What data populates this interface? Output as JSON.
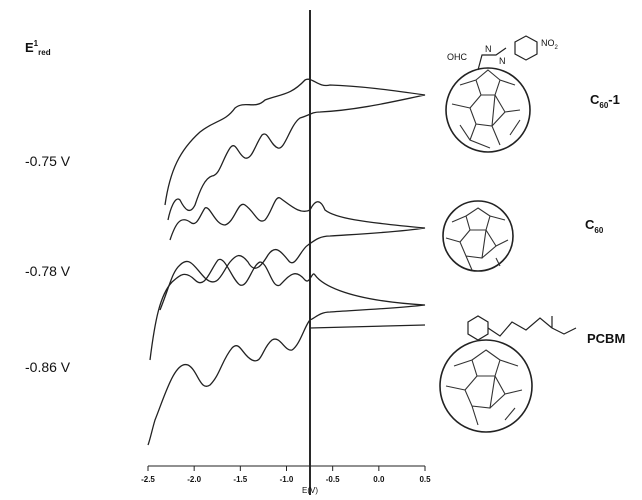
{
  "potential_label": {
    "main": "E",
    "sup": "1",
    "sub": "red"
  },
  "potentials": [
    "-0.75 V",
    "-0.78 V",
    "-0.86 V"
  ],
  "compounds": [
    {
      "name": "C",
      "sub": "60",
      "suffix": "-1"
    },
    {
      "name": "C",
      "sub": "60",
      "suffix": ""
    },
    {
      "name": "PCBM",
      "sub": "",
      "suffix": ""
    }
  ],
  "substituents": {
    "aldehyde": "OHC",
    "nitrogen": "N",
    "nitro": "NO",
    "nitro_sub": "2"
  },
  "x_axis": {
    "ticks": [
      "-2.5",
      "-2.0",
      "-1.5",
      "-1.0",
      "-0.5",
      "0.0",
      "0.5"
    ],
    "label": "E(V)"
  }
}
